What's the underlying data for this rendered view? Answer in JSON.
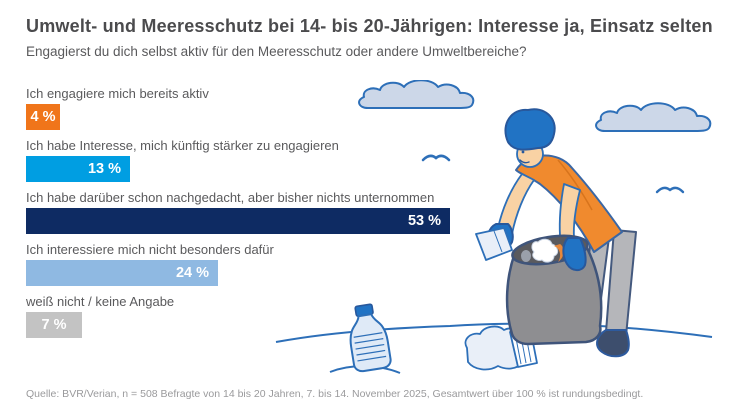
{
  "header": {
    "title": "Umwelt- und Meeresschutz bei 14- bis 20-Jährigen: Interesse ja, Einsatz selten",
    "subtitle": "Engagierst du dich selbst aktiv für den Meeresschutz oder andere Umweltbereiche?"
  },
  "chart_data": {
    "type": "bar",
    "orientation": "horizontal",
    "unit": "%",
    "categories": [
      "Ich engagiere mich bereits aktiv",
      "Ich habe Interesse, mich künftig stärker zu engagieren",
      "Ich habe darüber schon nachgedacht, aber bisher nichts unternommen",
      "Ich interessiere mich nicht besonders dafür",
      "weiß nicht / keine Angabe"
    ],
    "values": [
      4,
      13,
      53,
      24,
      7
    ],
    "value_labels": [
      "4 %",
      "13 %",
      "53 %",
      "24 %",
      "7 %"
    ],
    "bar_colors": [
      "#f0751a",
      "#009ee2",
      "#0e2b63",
      "#8fb9e2",
      "#c3c3c3"
    ],
    "xlim": [
      0,
      56
    ],
    "grid": false,
    "value_label_position": "inside",
    "legend": false
  },
  "illustration": {
    "description": "Person im orangefarbenen T-Shirt sammelt Müll (Papier, Plastikflasche) in einen grauen Sack; Wolken und Möwen im Hintergrund",
    "colors": {
      "outline_blue": "#2d6fb8",
      "cloud_fill": "#ccd7e8",
      "shirt_orange": "#f08a2e",
      "skin": "#f9d2a4",
      "glove_blue": "#2173c4",
      "bag_gray": "#8e8e91",
      "pants_gray": "#b5b6ba",
      "shoe_navy": "#3d4e6d"
    }
  },
  "footer": {
    "source": "Quelle: BVR/Verian, n = 508 Befragte von 14 bis 20 Jahren, 7. bis 14. November 2025, Gesamtwert über 100 % ist rundungsbedingt."
  }
}
